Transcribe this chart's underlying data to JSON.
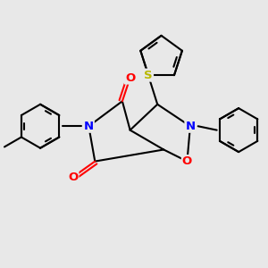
{
  "background_color": "#e8e8e8",
  "fig_size": [
    3.0,
    3.0
  ],
  "dpi": 100,
  "atom_colors": {
    "N": "#0000ff",
    "O": "#ff0000",
    "S": "#b8b800"
  },
  "bond_color": "#000000",
  "bond_width": 1.5
}
